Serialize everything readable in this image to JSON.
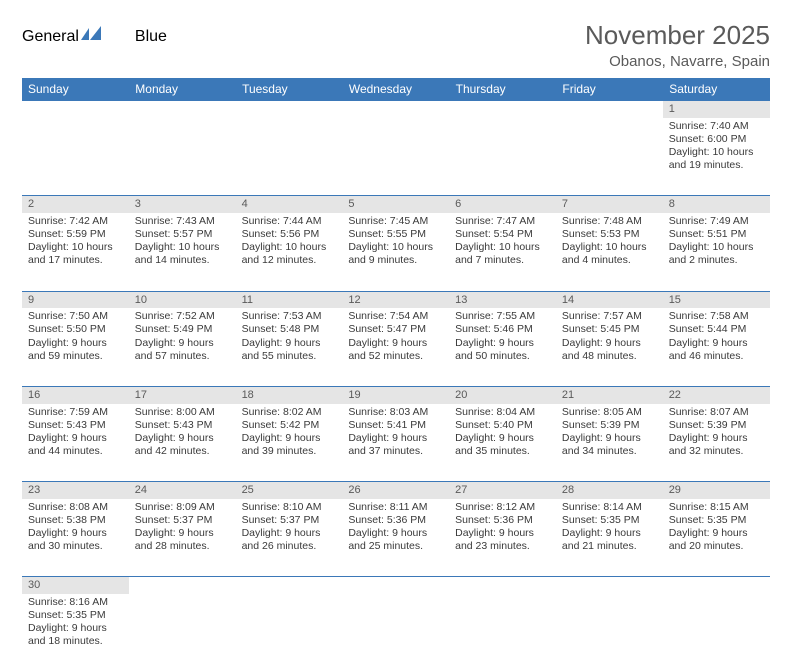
{
  "logo": {
    "part1": "General",
    "part2": "Blue"
  },
  "title": "November 2025",
  "location": "Obanos, Navarre, Spain",
  "colors": {
    "header_bg": "#3b78b8",
    "header_text": "#ffffff",
    "daynum_bg": "#e5e5e5",
    "text": "#3a3a3a",
    "title_text": "#5a5a5a",
    "rule": "#3b78b8"
  },
  "day_headers": [
    "Sunday",
    "Monday",
    "Tuesday",
    "Wednesday",
    "Thursday",
    "Friday",
    "Saturday"
  ],
  "weeks": [
    {
      "nums": [
        "",
        "",
        "",
        "",
        "",
        "",
        "1"
      ],
      "cells": [
        null,
        null,
        null,
        null,
        null,
        null,
        {
          "sunrise": "7:40 AM",
          "sunset": "6:00 PM",
          "daylight": "10 hours and 19 minutes."
        }
      ]
    },
    {
      "nums": [
        "2",
        "3",
        "4",
        "5",
        "6",
        "7",
        "8"
      ],
      "cells": [
        {
          "sunrise": "7:42 AM",
          "sunset": "5:59 PM",
          "daylight": "10 hours and 17 minutes."
        },
        {
          "sunrise": "7:43 AM",
          "sunset": "5:57 PM",
          "daylight": "10 hours and 14 minutes."
        },
        {
          "sunrise": "7:44 AM",
          "sunset": "5:56 PM",
          "daylight": "10 hours and 12 minutes."
        },
        {
          "sunrise": "7:45 AM",
          "sunset": "5:55 PM",
          "daylight": "10 hours and 9 minutes."
        },
        {
          "sunrise": "7:47 AM",
          "sunset": "5:54 PM",
          "daylight": "10 hours and 7 minutes."
        },
        {
          "sunrise": "7:48 AM",
          "sunset": "5:53 PM",
          "daylight": "10 hours and 4 minutes."
        },
        {
          "sunrise": "7:49 AM",
          "sunset": "5:51 PM",
          "daylight": "10 hours and 2 minutes."
        }
      ]
    },
    {
      "nums": [
        "9",
        "10",
        "11",
        "12",
        "13",
        "14",
        "15"
      ],
      "cells": [
        {
          "sunrise": "7:50 AM",
          "sunset": "5:50 PM",
          "daylight": "9 hours and 59 minutes."
        },
        {
          "sunrise": "7:52 AM",
          "sunset": "5:49 PM",
          "daylight": "9 hours and 57 minutes."
        },
        {
          "sunrise": "7:53 AM",
          "sunset": "5:48 PM",
          "daylight": "9 hours and 55 minutes."
        },
        {
          "sunrise": "7:54 AM",
          "sunset": "5:47 PM",
          "daylight": "9 hours and 52 minutes."
        },
        {
          "sunrise": "7:55 AM",
          "sunset": "5:46 PM",
          "daylight": "9 hours and 50 minutes."
        },
        {
          "sunrise": "7:57 AM",
          "sunset": "5:45 PM",
          "daylight": "9 hours and 48 minutes."
        },
        {
          "sunrise": "7:58 AM",
          "sunset": "5:44 PM",
          "daylight": "9 hours and 46 minutes."
        }
      ]
    },
    {
      "nums": [
        "16",
        "17",
        "18",
        "19",
        "20",
        "21",
        "22"
      ],
      "cells": [
        {
          "sunrise": "7:59 AM",
          "sunset": "5:43 PM",
          "daylight": "9 hours and 44 minutes."
        },
        {
          "sunrise": "8:00 AM",
          "sunset": "5:43 PM",
          "daylight": "9 hours and 42 minutes."
        },
        {
          "sunrise": "8:02 AM",
          "sunset": "5:42 PM",
          "daylight": "9 hours and 39 minutes."
        },
        {
          "sunrise": "8:03 AM",
          "sunset": "5:41 PM",
          "daylight": "9 hours and 37 minutes."
        },
        {
          "sunrise": "8:04 AM",
          "sunset": "5:40 PM",
          "daylight": "9 hours and 35 minutes."
        },
        {
          "sunrise": "8:05 AM",
          "sunset": "5:39 PM",
          "daylight": "9 hours and 34 minutes."
        },
        {
          "sunrise": "8:07 AM",
          "sunset": "5:39 PM",
          "daylight": "9 hours and 32 minutes."
        }
      ]
    },
    {
      "nums": [
        "23",
        "24",
        "25",
        "26",
        "27",
        "28",
        "29"
      ],
      "cells": [
        {
          "sunrise": "8:08 AM",
          "sunset": "5:38 PM",
          "daylight": "9 hours and 30 minutes."
        },
        {
          "sunrise": "8:09 AM",
          "sunset": "5:37 PM",
          "daylight": "9 hours and 28 minutes."
        },
        {
          "sunrise": "8:10 AM",
          "sunset": "5:37 PM",
          "daylight": "9 hours and 26 minutes."
        },
        {
          "sunrise": "8:11 AM",
          "sunset": "5:36 PM",
          "daylight": "9 hours and 25 minutes."
        },
        {
          "sunrise": "8:12 AM",
          "sunset": "5:36 PM",
          "daylight": "9 hours and 23 minutes."
        },
        {
          "sunrise": "8:14 AM",
          "sunset": "5:35 PM",
          "daylight": "9 hours and 21 minutes."
        },
        {
          "sunrise": "8:15 AM",
          "sunset": "5:35 PM",
          "daylight": "9 hours and 20 minutes."
        }
      ]
    },
    {
      "nums": [
        "30",
        "",
        "",
        "",
        "",
        "",
        ""
      ],
      "cells": [
        {
          "sunrise": "8:16 AM",
          "sunset": "5:35 PM",
          "daylight": "9 hours and 18 minutes."
        },
        null,
        null,
        null,
        null,
        null,
        null
      ]
    }
  ],
  "labels": {
    "sunrise": "Sunrise: ",
    "sunset": "Sunset: ",
    "daylight": "Daylight: "
  }
}
